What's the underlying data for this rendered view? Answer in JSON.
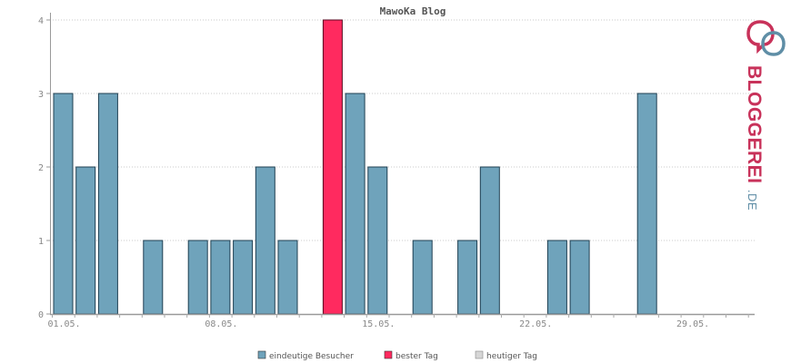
{
  "chart_data": {
    "type": "bar",
    "title": "MawoKa Blog",
    "xlabel": "",
    "ylabel": "",
    "ylim": [
      0,
      4
    ],
    "y_ticks": [
      "0",
      "1",
      "2",
      "3",
      "4"
    ],
    "x_tick_labels": [
      {
        "day": 1,
        "label": "01.05."
      },
      {
        "day": 8,
        "label": "08.05."
      },
      {
        "day": 15,
        "label": "15.05."
      },
      {
        "day": 22,
        "label": "22.05."
      },
      {
        "day": 29,
        "label": "29.05."
      }
    ],
    "days": [
      1,
      2,
      3,
      4,
      5,
      6,
      7,
      8,
      9,
      10,
      11,
      12,
      13,
      14,
      15,
      16,
      17,
      18,
      19,
      20,
      21,
      22,
      23,
      24,
      25,
      26,
      27,
      28,
      29,
      30,
      31
    ],
    "values": [
      3,
      2,
      3,
      0,
      1,
      0,
      1,
      1,
      1,
      2,
      1,
      0,
      4,
      3,
      2,
      0,
      1,
      0,
      1,
      2,
      0,
      0,
      1,
      1,
      0,
      0,
      3,
      0,
      0,
      0,
      0
    ],
    "best_day": 13,
    "grid": true,
    "legend_position": "bottom-center",
    "series": [
      {
        "name": "eindeutige Besucher",
        "color": "#6fa3bb"
      },
      {
        "name": "bester Tag",
        "color": "#ff2a5f"
      },
      {
        "name": "heutiger Tag",
        "color": "#d6d6d6"
      }
    ]
  },
  "logo": {
    "text_main": "BLOGGEREI",
    "text_suffix": ".DE",
    "color_main": "#c8325a",
    "color_suffix": "#5f8ea6"
  }
}
